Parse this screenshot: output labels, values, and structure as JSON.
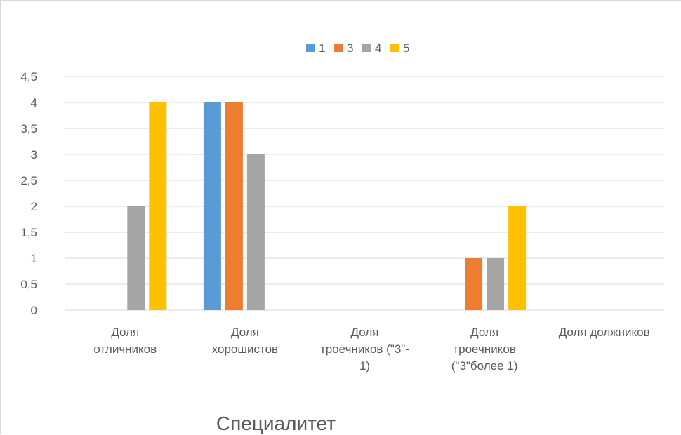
{
  "chart_data": {
    "type": "bar",
    "title": "Специалитет",
    "xlabel": "",
    "ylabel": "",
    "ylim": [
      0,
      4.5
    ],
    "ytick_step": 0.5,
    "y_tick_labels": [
      "0",
      "0,5",
      "1",
      "1,5",
      "2",
      "2,5",
      "3",
      "3,5",
      "4",
      "4,5"
    ],
    "grid": true,
    "legend_position": "top-center",
    "categories": [
      [
        "Доля",
        "отличников"
      ],
      [
        "Доля",
        "хорошистов"
      ],
      [
        "Доля",
        "троечников (\"3\"-",
        "1)"
      ],
      [
        "Доля",
        "троечников",
        "(\"3\"более 1)"
      ],
      [
        "Доля должников"
      ]
    ],
    "series": [
      {
        "name": "1",
        "color": "#5b9bd5",
        "values": [
          0,
          4,
          0,
          0,
          0
        ]
      },
      {
        "name": "3",
        "color": "#ed7d31",
        "values": [
          0,
          4,
          0,
          1,
          0
        ]
      },
      {
        "name": "4",
        "color": "#a5a5a5",
        "values": [
          2,
          3,
          0,
          1,
          0
        ]
      },
      {
        "name": "5",
        "color": "#ffc000",
        "values": [
          4,
          0,
          0,
          2,
          0
        ]
      }
    ]
  }
}
